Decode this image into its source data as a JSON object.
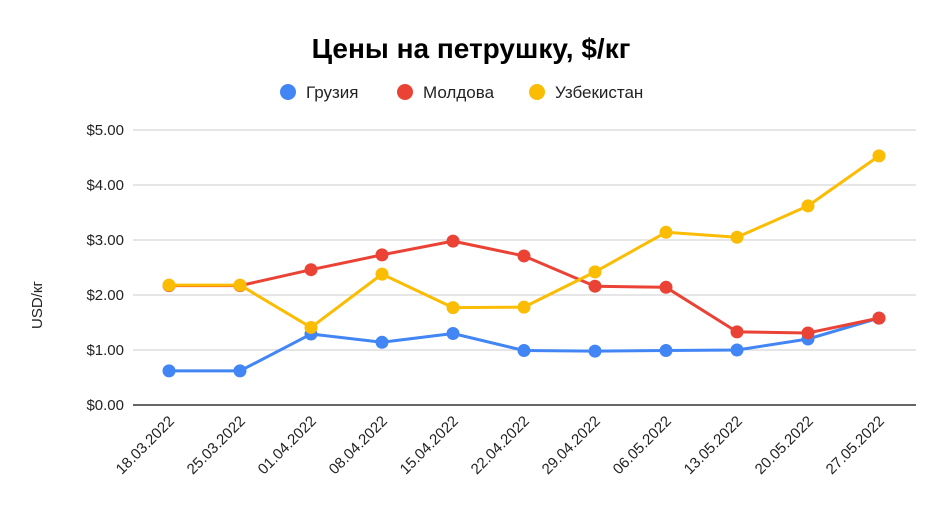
{
  "chart_data": {
    "type": "line",
    "title": "Цены на петрушку, $/кг",
    "xlabel": "",
    "ylabel": "USD/кг",
    "ylim": [
      0,
      5
    ],
    "yticks": [
      "$0.00",
      "$1.00",
      "$2.00",
      "$3.00",
      "$4.00",
      "$5.00"
    ],
    "grid": true,
    "legend_position": "top",
    "categories": [
      "18.03.2022",
      "25.03.2022",
      "01.04.2022",
      "08.04.2022",
      "15.04.2022",
      "22.04.2022",
      "29.04.2022",
      "06.05.2022",
      "13.05.2022",
      "20.05.2022",
      "27.05.2022"
    ],
    "series": [
      {
        "name": "Грузия",
        "color": "#4285f4",
        "values": [
          0.62,
          0.62,
          1.29,
          1.14,
          1.3,
          0.99,
          0.98,
          0.99,
          1.0,
          1.2,
          1.58
        ]
      },
      {
        "name": "Молдова",
        "color": "#ea4335",
        "values": [
          2.17,
          2.17,
          2.46,
          2.73,
          2.98,
          2.71,
          2.16,
          2.14,
          1.33,
          1.31,
          1.58
        ]
      },
      {
        "name": "Узбекистан",
        "color": "#fbbc04",
        "values": [
          2.18,
          2.18,
          1.41,
          2.38,
          1.77,
          1.78,
          2.42,
          3.14,
          3.05,
          3.62,
          4.53
        ]
      }
    ]
  }
}
